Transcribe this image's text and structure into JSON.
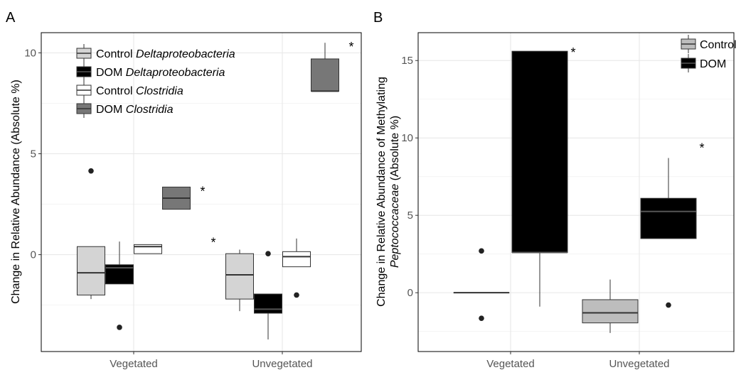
{
  "chart_data": [
    {
      "panel": "A",
      "type": "box",
      "ylabel": "Change in Relative Abundance (Absolute %)",
      "xlabel": "",
      "categories": [
        "Vegetated",
        "Unvegetated"
      ],
      "ylim": [
        -4.8,
        11
      ],
      "yticks": [
        0,
        5,
        10
      ],
      "grid": true,
      "legend_position": "top-left",
      "series": [
        {
          "name_prefix": "Control",
          "name_italic": "Deltaproteobacteria",
          "fill": "#d4d4d4",
          "boxes": [
            {
              "whislo": -2.2,
              "q1": -2.0,
              "med": -0.9,
              "q3": 0.4,
              "whishi": 0.4,
              "outliers": [
                4.15
              ],
              "star": false
            },
            {
              "whislo": -2.8,
              "q1": -2.2,
              "med": -1.0,
              "q3": 0.05,
              "whishi": 0.25,
              "outliers": [],
              "star": true
            }
          ]
        },
        {
          "name_prefix": "DOM",
          "name_italic": "Deltaproteobacteria",
          "fill": "#000000",
          "boxes": [
            {
              "whislo": -1.45,
              "q1": -1.45,
              "med": -0.65,
              "q3": -0.5,
              "whishi": 0.65,
              "outliers": [
                -3.6
              ],
              "star": false
            },
            {
              "whislo": -4.2,
              "q1": -2.9,
              "med": -2.7,
              "q3": -1.95,
              "whishi": -1.95,
              "outliers": [
                0.05
              ],
              "star": false
            }
          ]
        },
        {
          "name_prefix": "Control",
          "name_italic": "Clostridia",
          "fill": "#ffffff",
          "boxes": [
            {
              "whislo": 0.05,
              "q1": 0.05,
              "med": 0.4,
              "q3": 0.5,
              "whishi": 0.5,
              "outliers": [],
              "star": false
            },
            {
              "whislo": -0.6,
              "q1": -0.6,
              "med": -0.1,
              "q3": 0.15,
              "whishi": 0.8,
              "outliers": [
                -2.0
              ],
              "star": false
            }
          ]
        },
        {
          "name_prefix": "DOM",
          "name_italic": "Clostridia",
          "fill": "#777777",
          "boxes": [
            {
              "whislo": 2.25,
              "q1": 2.25,
              "med": 2.8,
              "q3": 3.35,
              "whishi": 3.35,
              "outliers": [],
              "star": true
            },
            {
              "whislo": 8.1,
              "q1": 8.1,
              "med": 8.1,
              "q3": 9.7,
              "whishi": 10.5,
              "outliers": [],
              "star": true
            }
          ]
        }
      ],
      "star_symbol": "*",
      "panel_letter": "A"
    },
    {
      "panel": "B",
      "type": "box",
      "ylabel_line1": "Change in Relative Abundance of Methylating",
      "ylabel_line2_italic": "Peptococcaceae",
      "ylabel_line2_plain": "(Absolute %)",
      "xlabel": "",
      "categories": [
        "Vegetated",
        "Unvegetated"
      ],
      "ylim": [
        -3.8,
        16.8
      ],
      "yticks": [
        0,
        5,
        10,
        15
      ],
      "grid": true,
      "legend_position": "top-right",
      "series": [
        {
          "name": "Control",
          "fill": "#bdbdbd",
          "boxes": [
            {
              "whislo": 0.0,
              "q1": 0.0,
              "med": 0.0,
              "q3": 0.0,
              "whishi": 0.0,
              "outliers": [
                2.7,
                -1.65
              ],
              "star": false
            },
            {
              "whislo": -2.6,
              "q1": -1.95,
              "med": -1.3,
              "q3": -0.45,
              "whishi": 0.85,
              "outliers": [],
              "star": false
            }
          ]
        },
        {
          "name": "DOM",
          "fill": "#000000",
          "boxes": [
            {
              "whislo": -0.9,
              "q1": 2.6,
              "med": 2.6,
              "q3": 15.6,
              "whishi": 15.6,
              "outliers": [],
              "star": true
            },
            {
              "whislo": 3.5,
              "q1": 3.5,
              "med": 5.25,
              "q3": 6.1,
              "whishi": 8.7,
              "outliers": [
                -0.8
              ],
              "star": true
            }
          ]
        }
      ],
      "star_symbol": "*",
      "panel_letter": "B"
    }
  ]
}
